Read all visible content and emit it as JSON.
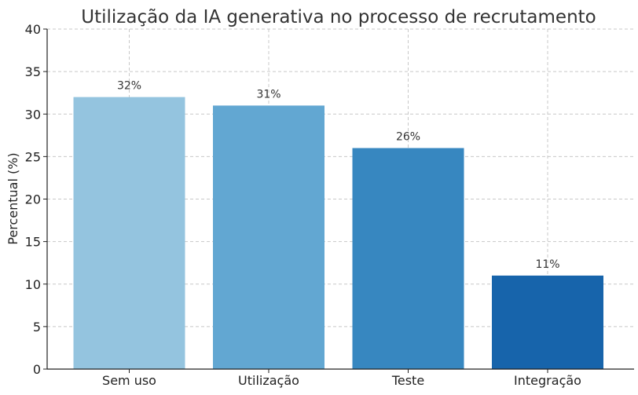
{
  "chart_data": {
    "type": "bar",
    "title": "Utilização da IA generativa no processo de recrutamento",
    "xlabel": "",
    "ylabel": "Percentual (%)",
    "categories": [
      "Sem uso",
      "Utilização",
      "Teste",
      "Integração"
    ],
    "values": [
      32,
      31,
      26,
      11
    ],
    "data_labels": [
      "32%",
      "31%",
      "26%",
      "11%"
    ],
    "colors": [
      "#94c4df",
      "#62a7d2",
      "#3787c0",
      "#1764ab"
    ],
    "ylim": [
      0,
      40
    ],
    "yticks": [
      0,
      5,
      10,
      15,
      20,
      25,
      30,
      35,
      40
    ],
    "grid": true,
    "legend": "none"
  }
}
